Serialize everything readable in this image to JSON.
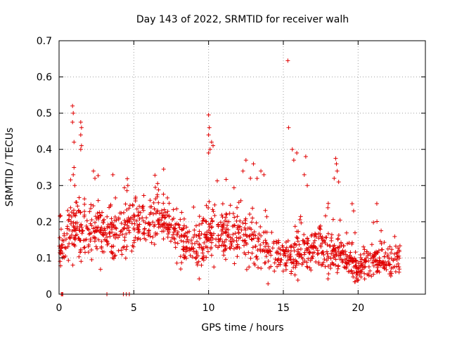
{
  "chart_data": {
    "type": "scatter",
    "title": "Day 143 of 2022, SRMTID for receiver walh",
    "xlabel": "GPS time / hours",
    "ylabel": "SRMTID / TECUs",
    "xlim": [
      0,
      24.5
    ],
    "ylim": [
      0,
      0.7
    ],
    "xticks": [
      0,
      5,
      10,
      15,
      20
    ],
    "xtick_labels": [
      "0",
      "5",
      "10",
      "15",
      "20"
    ],
    "yticks": [
      0,
      0.1,
      0.2,
      0.3,
      0.4,
      0.5,
      0.6,
      0.7
    ],
    "ytick_labels": [
      "0",
      "0.1",
      "0.2",
      "0.3",
      "0.4",
      "0.5",
      "0.6",
      "0.7"
    ],
    "grid": true,
    "marker": "+",
    "marker_color": "#e00000",
    "data_range_hours": [
      0,
      22.8
    ],
    "density_profile": [
      {
        "x": 0.0,
        "y": 0.13,
        "spread": 0.05
      },
      {
        "x": 1.0,
        "y": 0.19,
        "spread": 0.07
      },
      {
        "x": 2.0,
        "y": 0.18,
        "spread": 0.07
      },
      {
        "x": 3.0,
        "y": 0.17,
        "spread": 0.06
      },
      {
        "x": 4.0,
        "y": 0.17,
        "spread": 0.06
      },
      {
        "x": 5.0,
        "y": 0.2,
        "spread": 0.06
      },
      {
        "x": 6.0,
        "y": 0.21,
        "spread": 0.05
      },
      {
        "x": 7.0,
        "y": 0.2,
        "spread": 0.06
      },
      {
        "x": 8.0,
        "y": 0.16,
        "spread": 0.05
      },
      {
        "x": 9.0,
        "y": 0.13,
        "spread": 0.05
      },
      {
        "x": 10.0,
        "y": 0.17,
        "spread": 0.06
      },
      {
        "x": 11.0,
        "y": 0.16,
        "spread": 0.06
      },
      {
        "x": 12.0,
        "y": 0.17,
        "spread": 0.06
      },
      {
        "x": 13.0,
        "y": 0.15,
        "spread": 0.06
      },
      {
        "x": 14.0,
        "y": 0.12,
        "spread": 0.05
      },
      {
        "x": 15.0,
        "y": 0.11,
        "spread": 0.05
      },
      {
        "x": 16.0,
        "y": 0.12,
        "spread": 0.06
      },
      {
        "x": 17.0,
        "y": 0.12,
        "spread": 0.05
      },
      {
        "x": 18.0,
        "y": 0.12,
        "spread": 0.05
      },
      {
        "x": 19.0,
        "y": 0.1,
        "spread": 0.04
      },
      {
        "x": 20.0,
        "y": 0.07,
        "spread": 0.03
      },
      {
        "x": 21.0,
        "y": 0.1,
        "spread": 0.04
      },
      {
        "x": 22.0,
        "y": 0.09,
        "spread": 0.04
      },
      {
        "x": 22.8,
        "y": 0.1,
        "spread": 0.04
      }
    ],
    "point_count": 1300,
    "notable_points": [
      {
        "x": 0.9,
        "y": 0.52
      },
      {
        "x": 0.95,
        "y": 0.5
      },
      {
        "x": 0.9,
        "y": 0.475
      },
      {
        "x": 1.0,
        "y": 0.42
      },
      {
        "x": 1.0,
        "y": 0.35
      },
      {
        "x": 0.95,
        "y": 0.33
      },
      {
        "x": 1.05,
        "y": 0.3
      },
      {
        "x": 1.45,
        "y": 0.475
      },
      {
        "x": 1.5,
        "y": 0.46
      },
      {
        "x": 1.45,
        "y": 0.44
      },
      {
        "x": 1.5,
        "y": 0.41
      },
      {
        "x": 1.45,
        "y": 0.4
      },
      {
        "x": 2.3,
        "y": 0.34
      },
      {
        "x": 2.4,
        "y": 0.32
      },
      {
        "x": 3.6,
        "y": 0.33
      },
      {
        "x": 4.6,
        "y": 0.3
      },
      {
        "x": 10.0,
        "y": 0.495
      },
      {
        "x": 10.05,
        "y": 0.46
      },
      {
        "x": 10.0,
        "y": 0.44
      },
      {
        "x": 10.2,
        "y": 0.42
      },
      {
        "x": 10.3,
        "y": 0.41
      },
      {
        "x": 10.1,
        "y": 0.4
      },
      {
        "x": 10.0,
        "y": 0.39
      },
      {
        "x": 12.5,
        "y": 0.37
      },
      {
        "x": 12.3,
        "y": 0.34
      },
      {
        "x": 12.8,
        "y": 0.32
      },
      {
        "x": 13.0,
        "y": 0.36
      },
      {
        "x": 13.5,
        "y": 0.34
      },
      {
        "x": 13.7,
        "y": 0.33
      },
      {
        "x": 15.3,
        "y": 0.645
      },
      {
        "x": 15.35,
        "y": 0.46
      },
      {
        "x": 15.6,
        "y": 0.4
      },
      {
        "x": 15.7,
        "y": 0.37
      },
      {
        "x": 15.9,
        "y": 0.39
      },
      {
        "x": 16.4,
        "y": 0.33
      },
      {
        "x": 16.5,
        "y": 0.38
      },
      {
        "x": 16.6,
        "y": 0.3
      },
      {
        "x": 18.5,
        "y": 0.375
      },
      {
        "x": 18.55,
        "y": 0.36
      },
      {
        "x": 18.6,
        "y": 0.34
      },
      {
        "x": 18.7,
        "y": 0.31
      },
      {
        "x": 18.4,
        "y": 0.32
      },
      {
        "x": 19.6,
        "y": 0.25
      },
      {
        "x": 19.7,
        "y": 0.23
      },
      {
        "x": 0.15,
        "y": 0.0
      },
      {
        "x": 0.2,
        "y": 0.0
      },
      {
        "x": 0.25,
        "y": 0.0
      },
      {
        "x": 3.2,
        "y": 0.0
      },
      {
        "x": 4.3,
        "y": 0.0
      },
      {
        "x": 4.5,
        "y": 0.0
      },
      {
        "x": 4.7,
        "y": 0.0
      }
    ]
  }
}
